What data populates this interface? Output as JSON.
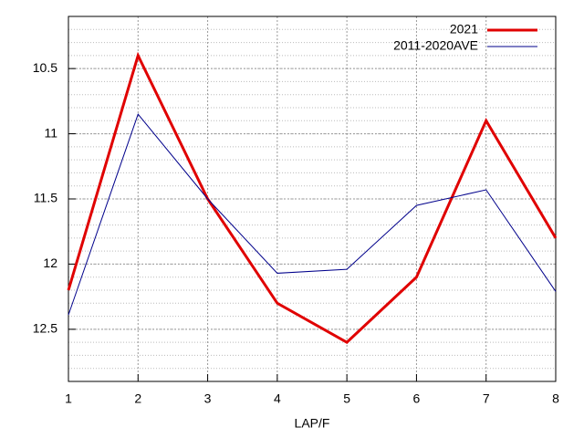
{
  "chart_data": {
    "type": "line",
    "x": [
      1,
      2,
      3,
      4,
      5,
      6,
      7,
      8
    ],
    "xlabel": "LAP/F",
    "series": [
      {
        "name": "2021",
        "color": "#e00000",
        "width": 3,
        "values": [
          12.2,
          10.4,
          11.5,
          12.3,
          12.6,
          12.1,
          10.9,
          11.8
        ]
      },
      {
        "name": "2011-2020AVE",
        "color": "#00008b",
        "width": 1,
        "values": [
          12.39,
          10.85,
          11.5,
          12.07,
          12.04,
          11.55,
          11.43,
          12.21
        ]
      }
    ],
    "xlim": [
      1,
      8
    ],
    "xticks": [
      1,
      2,
      3,
      4,
      5,
      6,
      7,
      8
    ],
    "ylim": [
      12.9,
      10.1
    ],
    "yticks": [
      10.5,
      11,
      11.5,
      12,
      12.5
    ],
    "grid": true,
    "legend": "top-right"
  }
}
